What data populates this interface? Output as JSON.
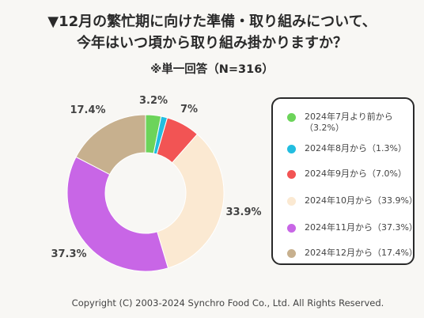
{
  "header": {
    "line1": "▼12月の繁忙期に向けた準備・取り組みについて、",
    "line2": "今年はいつ頃から取り組み掛かりますか？",
    "line3": "※単一回答（N=316）"
  },
  "chart_data": {
    "type": "pie",
    "donut": true,
    "categories": [
      "2024年7月より前から",
      "2024年8月から",
      "2024年9月から",
      "2024年10月から",
      "2024年11月から",
      "2024年12月から"
    ],
    "values": [
      3.2,
      1.3,
      7.0,
      33.9,
      37.3,
      17.4
    ],
    "colors": [
      "#6cd45a",
      "#22bde0",
      "#f25454",
      "#fbe9d2",
      "#c866e6",
      "#c7b08e"
    ],
    "data_labels": [
      "3.2%",
      "",
      "7%",
      "33.9%",
      "37.3%",
      "17.4%"
    ],
    "legend_labels": [
      {
        "line1": "2024年7月より前から",
        "line2": "（3.2%）"
      },
      {
        "line1": "2024年8月から（1.3%）",
        "line2": ""
      },
      {
        "line1": "2024年9月から（7.0%）",
        "line2": ""
      },
      {
        "line1": "2024年10月から（33.9%）",
        "line2": ""
      },
      {
        "line1": "2024年11月から（37.3%）",
        "line2": ""
      },
      {
        "line1": "2024年12月から（17.4%）",
        "line2": ""
      }
    ],
    "legend_position": "right"
  },
  "footer": "Copyright (C) 2003-2024  Synchro Food Co., Ltd. All Rights Reserved."
}
